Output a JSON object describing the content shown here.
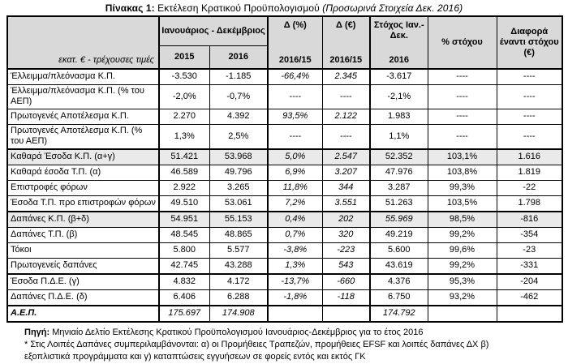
{
  "title": {
    "prefix": "Πίνακας 1:",
    "main": " Εκτέλεση Κρατικού Προϋπολογισμού ",
    "note": "(Προσωρινά Στοιχεία Δεκ. 2016)"
  },
  "colors": {
    "header_bg": "#d9d9d9",
    "shaded_row_bg": "#eaeaea",
    "border": "#000000"
  },
  "header": {
    "unit_label": "εκατ. € - τρέχουσες τιμές",
    "period_group": "Ιανουάριος - Δεκέμβριος",
    "year_2015": "2015",
    "year_2016": "2016",
    "delta_pct": "Δ (%)",
    "delta_eur": "Δ (€)",
    "delta_sub": "2016/15",
    "target_label": "Στόχος Ιαν.-Δεκ.",
    "target_year": "2016",
    "pct_target": "% στόχου",
    "diff_target": "Διαφορά έναντι στόχου (€)"
  },
  "rows": [
    {
      "label": "Έλλειμμα/πλεόνασμα Κ.Π.",
      "cells": [
        "-3.530",
        "-1.185",
        "-66,4%",
        "2.345",
        "-3.617",
        "----",
        "----"
      ],
      "shaded": false,
      "thick_top": true
    },
    {
      "label": "Έλλειμμα/πλεόνασμα Κ.Π. (% του ΑΕΠ)",
      "cells": [
        "-2,0%",
        "-0,7%",
        "----",
        "----",
        "-2,1%",
        "----",
        "----"
      ],
      "shaded": false,
      "thick_top": false
    },
    {
      "label": "Πρωτογενές Αποτέλεσμα Κ.Π.",
      "cells": [
        "2.270",
        "4.392",
        "93,5%",
        "2.122",
        "1.983",
        "----",
        "----"
      ],
      "shaded": false,
      "thick_top": false
    },
    {
      "label": "Πρωτογενές Αποτέλεσμα Κ.Π. (% του ΑΕΠ)",
      "cells": [
        "1,3%",
        "2,5%",
        "----",
        "----",
        "1,1%",
        "----",
        "----"
      ],
      "shaded": false,
      "thick_top": false
    },
    {
      "label": "Καθαρά Έσοδα Κ.Π. (α+γ)",
      "cells": [
        "51.421",
        "53.968",
        "5,0%",
        "2.547",
        "52.352",
        "103,1%",
        "1.616"
      ],
      "shaded": true,
      "thick_top": true
    },
    {
      "label": "Καθαρά έσοδα Τ.Π. (α)",
      "cells": [
        "46.589",
        "49.796",
        "6,9%",
        "3.207",
        "47.976",
        "103,8%",
        "1.819"
      ],
      "shaded": false,
      "thick_top": false
    },
    {
      "label": "Επιστροφές φόρων",
      "cells": [
        "2.922",
        "3.265",
        "11,8%",
        "344",
        "3.287",
        "99,3%",
        "-22"
      ],
      "shaded": false,
      "thick_top": false
    },
    {
      "label": "Έσοδα Τ.Π. προ επιστροφών φόρων",
      "cells": [
        "49.510",
        "53.061",
        "7,2%",
        "3.551",
        "51.263",
        "103,5%",
        "1.798"
      ],
      "shaded": false,
      "thick_top": false
    },
    {
      "label": "Δαπάνες Κ.Π. (β+δ)",
      "cells": [
        "54.951",
        "55.153",
        "0,4%",
        "202",
        "55.969",
        "98,5%",
        "-816"
      ],
      "shaded": true,
      "thick_top": true,
      "italic_cells": [
        4
      ]
    },
    {
      "label": "Δαπάνες Τ.Π. (β)",
      "cells": [
        "48.545",
        "48.865",
        "0,7%",
        "320",
        "49.219",
        "99,2%",
        "-354"
      ],
      "shaded": false,
      "thick_top": false
    },
    {
      "label": "Τόκοι",
      "cells": [
        "5.800",
        "5.577",
        "-3,8%",
        "-223",
        "5.600",
        "99,6%",
        "-23"
      ],
      "shaded": false,
      "thick_top": false
    },
    {
      "label": "Πρωτογενείς δαπάνες",
      "cells": [
        "42.745",
        "43.288",
        "1,3%",
        "543",
        "43.619",
        "99,2%",
        "-331"
      ],
      "shaded": false,
      "thick_top": false
    },
    {
      "label": "Έσοδα Π.Δ.Ε. (γ)",
      "cells": [
        "4.832",
        "4.172",
        "-13,7%",
        "-660",
        "4.376",
        "95,3%",
        "-204"
      ],
      "shaded": false,
      "thick_top": true
    },
    {
      "label": "Δαπάνες Π.Δ.Ε. (δ)",
      "cells": [
        "6.406",
        "6.288",
        "-1,8%",
        "-118",
        "6.750",
        "93,2%",
        "-462"
      ],
      "shaded": false,
      "thick_top": false
    },
    {
      "label": "Α.Ε.Π.",
      "cells": [
        "175.697",
        "174.908",
        "",
        "",
        "174.792",
        "",
        ""
      ],
      "shaded": false,
      "thick_top": true,
      "gdp": true
    }
  ],
  "footnotes": {
    "source_label": "Πηγή:",
    "source_text": "Μηνιαίο Δελτίο Εκτέλεσης Κρατικού Προϋπολογισμού Ιανουάριος-Δεκέμβριος για το έτος 2016",
    "note_line1": "* Στις Λοιπές Δαπάνες συμπεριλαμβάνονται: α) οι Προμήθειες Τραπεζών, προμήθειες EFSF και λοιπές δαπάνες ΔΧ β)",
    "note_line2": "εξοπλιστικά προγράμματα και γ) καταπτώσεις εγγυήσεων σε φορείς εντός και εκτός ΓΚ"
  }
}
